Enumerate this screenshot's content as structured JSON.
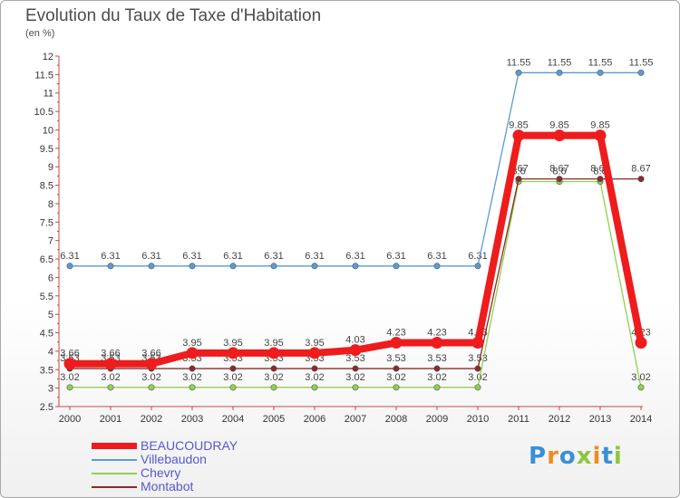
{
  "title": "Evolution du Taux de Taxe d'Habitation",
  "unit_label": "(en %)",
  "brand": {
    "text": "Proxiti",
    "colors": [
      "#3a8fd8",
      "#f08c1e",
      "#3a8fd8",
      "#8cc63f",
      "#f08c1e",
      "#3a8fd8",
      "#8cc63f"
    ]
  },
  "chart_data": {
    "type": "line",
    "title": "Evolution du Taux de Taxe d'Habitation",
    "ylabel": "(en %)",
    "xlabel": "",
    "x": [
      "2000",
      "2001",
      "2002",
      "2003",
      "2004",
      "2005",
      "2006",
      "2007",
      "2008",
      "2009",
      "2010",
      "2011",
      "2012",
      "2013",
      "2014"
    ],
    "ylim": [
      2.5,
      12
    ],
    "yticks": [
      "2.5",
      "3",
      "3.5",
      "4",
      "4.5",
      "5",
      "5.5",
      "6",
      "6.5",
      "7",
      "7.5",
      "8",
      "8.5",
      "9",
      "9.5",
      "10",
      "10.5",
      "11",
      "11.5",
      "12"
    ],
    "grid": false,
    "legend_position": "bottom-left",
    "series": [
      {
        "name": "BEAUCOUDRAY",
        "color": "#ee1c1c",
        "values": [
          3.66,
          3.66,
          3.66,
          3.95,
          3.95,
          3.95,
          3.95,
          4.03,
          4.23,
          4.23,
          4.23,
          9.85,
          9.85,
          9.85,
          4.23
        ],
        "labels": [
          "3.66",
          "3.66",
          "3.66",
          "3.95",
          "3.95",
          "3.95",
          "3.95",
          "4.03",
          "4.23",
          "4.23",
          "4.23",
          "9.85",
          "9.85",
          "9.85",
          "4.23"
        ]
      },
      {
        "name": "Villebaudon",
        "color": "#5b9bd5",
        "values": [
          6.31,
          6.31,
          6.31,
          6.31,
          6.31,
          6.31,
          6.31,
          6.31,
          6.31,
          6.31,
          6.31,
          11.55,
          11.55,
          11.55,
          11.55
        ],
        "labels": [
          "6.31",
          "6.31",
          "6.31",
          "6.31",
          "6.31",
          "6.31",
          "6.31",
          "6.31",
          "6.31",
          "6.31",
          "6.31",
          "11.55",
          "11.55",
          "11.55",
          "11.55"
        ]
      },
      {
        "name": "Chevry",
        "color": "#8ed14f",
        "values": [
          3.02,
          3.02,
          3.02,
          3.02,
          3.02,
          3.02,
          3.02,
          3.02,
          3.02,
          3.02,
          3.02,
          8.6,
          8.6,
          8.6,
          3.02
        ],
        "labels": [
          "3.02",
          "3.02",
          "3.02",
          "3.02",
          "3.02",
          "3.02",
          "3.02",
          "3.02",
          "3.02",
          "3.02",
          "3.02",
          "8.6",
          "8.6",
          "8.6",
          "3.02"
        ]
      },
      {
        "name": "Montabot",
        "color": "#8b2a2a",
        "values": [
          3.53,
          3.53,
          3.53,
          3.53,
          3.53,
          3.53,
          3.53,
          3.53,
          3.53,
          3.53,
          3.53,
          8.67,
          8.67,
          8.67,
          8.67
        ],
        "labels": [
          "3.53",
          "3.53",
          "3.53",
          "3.53",
          "3.53",
          "3.53",
          "3.53",
          "3.53",
          "3.53",
          "3.53",
          "3.53",
          "8.67",
          "8.67",
          "8.67",
          "8.67"
        ]
      }
    ]
  }
}
